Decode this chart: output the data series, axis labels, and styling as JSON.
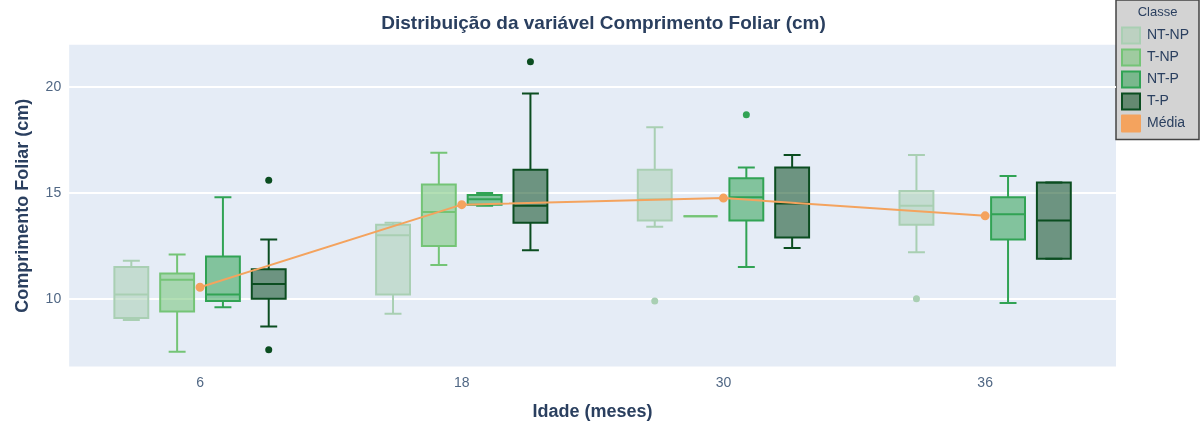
{
  "chart_data": {
    "type": "box",
    "title": "Distribuição da variável Comprimento Foliar (cm)",
    "xlabel": "Idade (meses)",
    "ylabel": "Comprimento Foliar (cm)",
    "legend_title": "Classe",
    "categories": [
      "6",
      "18",
      "30",
      "36"
    ],
    "series": [
      {
        "name": "NT-NP",
        "color": "#a9cfb3",
        "boxes": [
          {
            "low": 9.0,
            "q1": 9.1,
            "median": 10.2,
            "q3": 11.5,
            "high": 11.8
          },
          {
            "low": 9.3,
            "q1": 10.2,
            "median": 13.0,
            "q3": 13.5,
            "high": 13.6
          },
          {
            "low": 13.4,
            "q1": 13.7,
            "median": 14.7,
            "q3": 16.1,
            "high": 18.1,
            "outliers": [
              9.9
            ]
          },
          {
            "low": 12.2,
            "q1": 13.5,
            "median": 14.4,
            "q3": 15.1,
            "high": 16.8,
            "outliers": [
              10.0
            ]
          }
        ]
      },
      {
        "name": "T-NP",
        "color": "#74c476",
        "boxes": [
          {
            "low": 7.5,
            "q1": 9.4,
            "median": 10.9,
            "q3": 11.2,
            "high": 12.1
          },
          {
            "low": 11.6,
            "q1": 12.5,
            "median": 14.1,
            "q3": 15.4,
            "high": 16.9
          },
          {
            "low": 13.9,
            "q1": 13.9,
            "median": 13.9,
            "q3": 13.9,
            "high": 13.9
          },
          null
        ]
      },
      {
        "name": "NT-P",
        "color": "#31a354",
        "boxes": [
          {
            "low": 9.6,
            "q1": 9.9,
            "median": 10.2,
            "q3": 12.0,
            "high": 14.8
          },
          {
            "low": 14.4,
            "q1": 14.45,
            "median": 14.7,
            "q3": 14.9,
            "high": 15.0
          },
          {
            "low": 11.5,
            "q1": 13.7,
            "median": 14.8,
            "q3": 15.7,
            "high": 16.2,
            "outliers": [
              18.7
            ]
          },
          {
            "low": 9.8,
            "q1": 12.8,
            "median": 14.0,
            "q3": 14.8,
            "high": 15.8
          }
        ]
      },
      {
        "name": "T-P",
        "color": "#0b4d20",
        "boxes": [
          {
            "low": 8.7,
            "q1": 10.0,
            "median": 10.7,
            "q3": 11.4,
            "high": 12.8,
            "outliers": [
              15.6,
              7.6
            ]
          },
          {
            "low": 12.3,
            "q1": 13.6,
            "median": 14.4,
            "q3": 16.1,
            "high": 19.7,
            "outliers": [
              21.2
            ]
          },
          {
            "low": 12.4,
            "q1": 12.9,
            "median": 14.5,
            "q3": 16.2,
            "high": 16.8
          },
          {
            "low": 11.9,
            "q1": 11.9,
            "median": 13.7,
            "q3": 15.5,
            "high": 15.5
          }
        ]
      },
      {
        "name": "Média",
        "type": "line",
        "color": "#f4a35e",
        "values": [
          10.55,
          14.45,
          14.76,
          13.92
        ]
      }
    ],
    "ylim": [
      6.8,
      22
    ],
    "yticks": [
      10,
      15,
      20
    ],
    "grid": "y",
    "legend": "top right",
    "marker": "circle"
  }
}
